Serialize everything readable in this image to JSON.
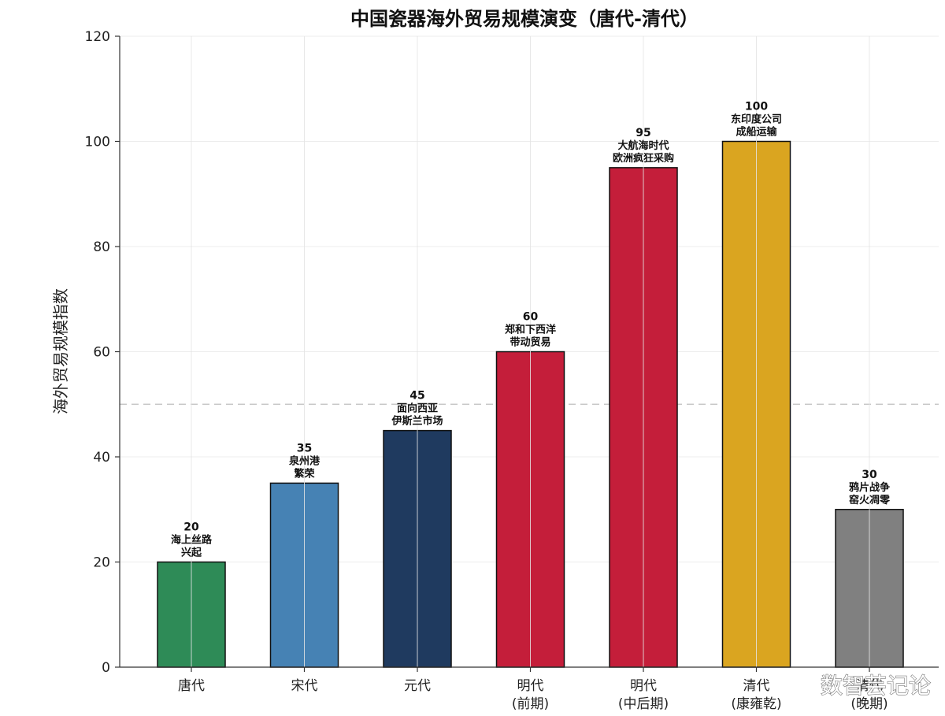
{
  "chart_data": {
    "type": "bar",
    "title": "中国瓷器海外贸易规模演变（唐代-清代）",
    "xlabel": "",
    "ylabel": "海外贸易规模指数",
    "ylim": [
      0,
      120
    ],
    "yticks": [
      0,
      20,
      40,
      60,
      80,
      100,
      120
    ],
    "grid": true,
    "reference_line": 50,
    "categories": [
      [
        "唐代"
      ],
      [
        "宋代"
      ],
      [
        "元代"
      ],
      [
        "明代",
        "(前期)"
      ],
      [
        "明代",
        "(中后期)"
      ],
      [
        "清代",
        "(康雍乾)"
      ],
      [
        "清代",
        "(晚期)"
      ]
    ],
    "values": [
      20,
      35,
      45,
      60,
      95,
      100,
      30
    ],
    "annotations": [
      [
        "海上丝路",
        "兴起"
      ],
      [
        "泉州港",
        "繁荣"
      ],
      [
        "面向西亚",
        "伊斯兰市场"
      ],
      [
        "郑和下西洋",
        "带动贸易"
      ],
      [
        "大航海时代",
        "欧洲疯狂采购"
      ],
      [
        "东印度公司",
        "成船运输"
      ],
      [
        "鸦片战争",
        "窑火凋零"
      ]
    ],
    "colors": [
      "#2e8b57",
      "#4682b4",
      "#1f3a5f",
      "#c41e3a",
      "#c41e3a",
      "#daa520",
      "#808080"
    ]
  },
  "watermark": "数智芸记论"
}
